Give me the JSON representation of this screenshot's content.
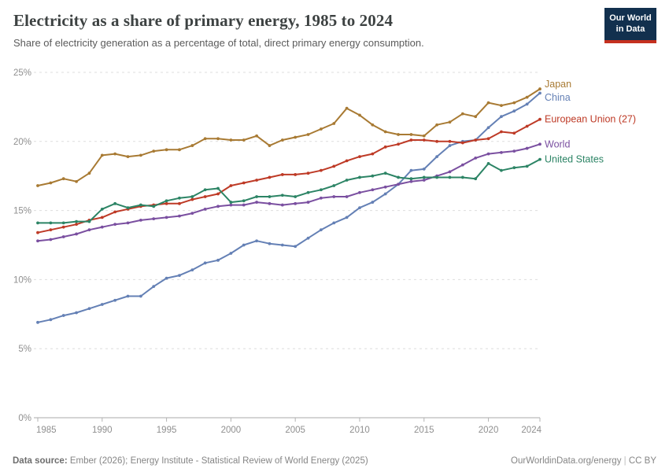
{
  "header": {
    "title": "Electricity as a share of primary energy, 1985 to 2024",
    "subtitle": "Share of electricity generation as a percentage of total, direct primary energy consumption.",
    "logo": {
      "line1": "Our World",
      "line2": "in Data"
    }
  },
  "chart_data": {
    "type": "line",
    "title": "Electricity as a share of primary energy, 1985 to 2024",
    "x": [
      1985,
      1986,
      1987,
      1988,
      1989,
      1990,
      1991,
      1992,
      1993,
      1994,
      1995,
      1996,
      1997,
      1998,
      1999,
      2000,
      2001,
      2002,
      2003,
      2004,
      2005,
      2006,
      2007,
      2008,
      2009,
      2010,
      2011,
      2012,
      2013,
      2014,
      2015,
      2016,
      2017,
      2018,
      2019,
      2020,
      2021,
      2022,
      2023,
      2024
    ],
    "series": [
      {
        "name": "Japan",
        "color": "#A87A33",
        "values": [
          16.8,
          17.0,
          17.3,
          17.1,
          17.7,
          19.0,
          19.1,
          18.9,
          19.0,
          19.3,
          19.4,
          19.4,
          19.7,
          20.2,
          20.2,
          20.1,
          20.1,
          20.4,
          19.7,
          20.1,
          20.3,
          20.5,
          20.9,
          21.3,
          22.4,
          21.9,
          21.2,
          20.7,
          20.5,
          20.5,
          20.4,
          21.2,
          21.4,
          22.0,
          21.8,
          22.8,
          22.6,
          22.8,
          23.2,
          23.8
        ]
      },
      {
        "name": "China",
        "color": "#6480B5",
        "values": [
          6.9,
          7.1,
          7.4,
          7.6,
          7.9,
          8.2,
          8.5,
          8.8,
          8.8,
          9.5,
          10.1,
          10.3,
          10.7,
          11.2,
          11.4,
          11.9,
          12.5,
          12.8,
          12.6,
          12.5,
          12.4,
          13.0,
          13.6,
          14.1,
          14.5,
          15.2,
          15.6,
          16.2,
          16.9,
          17.9,
          18.0,
          18.9,
          19.7,
          20.0,
          20.1,
          21.0,
          21.8,
          22.2,
          22.7,
          23.5
        ]
      },
      {
        "name": "European Union (27)",
        "color": "#BE3A26",
        "values": [
          13.4,
          13.6,
          13.8,
          14.0,
          14.3,
          14.5,
          14.9,
          15.1,
          15.3,
          15.4,
          15.5,
          15.5,
          15.8,
          16.0,
          16.2,
          16.8,
          17.0,
          17.2,
          17.4,
          17.6,
          17.6,
          17.7,
          17.9,
          18.2,
          18.6,
          18.9,
          19.1,
          19.6,
          19.8,
          20.1,
          20.1,
          20.0,
          20.0,
          19.9,
          20.1,
          20.2,
          20.7,
          20.6,
          21.1,
          21.6
        ]
      },
      {
        "name": "World",
        "color": "#7A4FA0",
        "values": [
          12.8,
          12.9,
          13.1,
          13.3,
          13.6,
          13.8,
          14.0,
          14.1,
          14.3,
          14.4,
          14.5,
          14.6,
          14.8,
          15.1,
          15.3,
          15.4,
          15.4,
          15.6,
          15.5,
          15.4,
          15.5,
          15.6,
          15.9,
          16.0,
          16.0,
          16.3,
          16.5,
          16.7,
          16.9,
          17.1,
          17.2,
          17.5,
          17.8,
          18.3,
          18.8,
          19.1,
          19.2,
          19.3,
          19.5,
          19.8
        ]
      },
      {
        "name": "United States",
        "color": "#2C8465",
        "values": [
          14.1,
          14.1,
          14.1,
          14.2,
          14.2,
          15.1,
          15.5,
          15.2,
          15.4,
          15.3,
          15.7,
          15.9,
          16.0,
          16.5,
          16.6,
          15.6,
          15.7,
          16.0,
          16.0,
          16.1,
          16.0,
          16.3,
          16.5,
          16.8,
          17.2,
          17.4,
          17.5,
          17.7,
          17.4,
          17.3,
          17.4,
          17.4,
          17.4,
          17.4,
          17.3,
          18.4,
          17.9,
          18.1,
          18.2,
          18.7
        ]
      }
    ],
    "xticks": [
      1985,
      1990,
      1995,
      2000,
      2005,
      2010,
      2015,
      2020,
      2024
    ],
    "yticks": [
      0,
      5,
      10,
      15,
      20,
      25
    ],
    "ytick_suffix": "%",
    "xlim": [
      1985,
      2024
    ],
    "ylim": [
      0,
      25
    ],
    "grid": "horizontal-dashed",
    "legend_position": "right-end-labels"
  },
  "footer": {
    "datasource_label": "Data source:",
    "datasource_text": " Ember (2026); Energy Institute - Statistical Review of World Energy (2025)",
    "url": "OurWorldinData.org/energy",
    "separator": " | ",
    "license": "CC BY"
  }
}
